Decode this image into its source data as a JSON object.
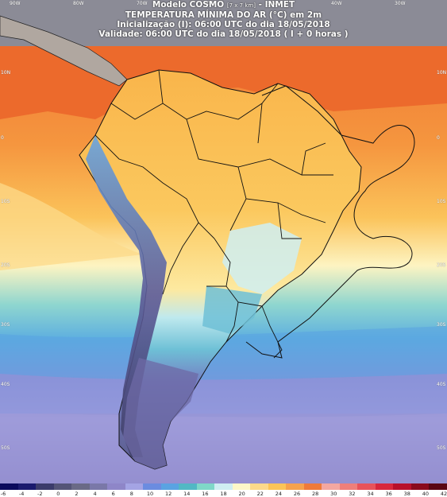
{
  "title": {
    "line1_model": "Modelo COSMO",
    "line1_res": "[7 x 7 km]",
    "line1_org": "- INMET",
    "line2": "TEMPERATURA MÍNIMA DO AR (°C) em 2m",
    "line3": "Inicialização (I): 06:00 UTC do dia 18/05/2018",
    "line4": "Validade: 06:00 UTC do dia 18/05/2018 ( I + 0 horas )"
  },
  "coords": {
    "top": [
      "90W",
      "80W",
      "70W",
      "60W",
      "50W",
      "40W",
      "30W"
    ],
    "left": [
      "10N",
      "0",
      "10S",
      "20S",
      "30S",
      "40S",
      "50S"
    ],
    "right": [
      "10N",
      "0",
      "10S",
      "20S",
      "30S",
      "40S",
      "50S"
    ]
  },
  "legend": {
    "labels": [
      "-6",
      "-4",
      "-2",
      "0",
      "2",
      "4",
      "6",
      "8",
      "10",
      "12",
      "14",
      "16",
      "18",
      "20",
      "22",
      "24",
      "26",
      "28",
      "30",
      "32",
      "34",
      "36",
      "38",
      "40",
      "42"
    ],
    "colors": [
      "#0a0a5c",
      "#1a1a6e",
      "#3b3b6b",
      "#545477",
      "#6a6a86",
      "#7a78a8",
      "#8e86c8",
      "#a4a4e4",
      "#6b8ce0",
      "#5aa3e2",
      "#52b8c4",
      "#7fd8c8",
      "#cfeef2",
      "#fdf7c8",
      "#fcd98a",
      "#fbc457",
      "#f6a24d",
      "#ef7a3a",
      "#f4a7a0",
      "#ef7f7a",
      "#e8535a",
      "#d8283c",
      "#b8102a",
      "#8a0a1c",
      "#5a0612"
    ]
  },
  "map": {
    "ocean_color": "#e96a2e",
    "land_color": "#fbc15a",
    "border_color": "#111111"
  }
}
